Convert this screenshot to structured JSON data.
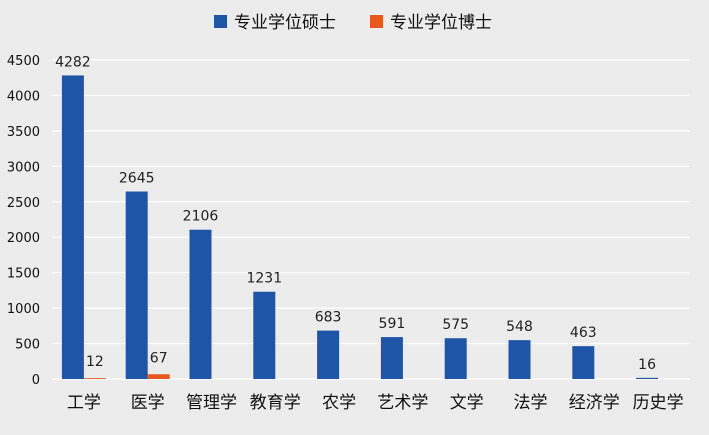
{
  "chart_data": {
    "type": "bar",
    "categories": [
      "工学",
      "医学",
      "管理学",
      "教育学",
      "农学",
      "艺术学",
      "文学",
      "法学",
      "经济学",
      "历史学"
    ],
    "series": [
      {
        "name": "专业学位硕士",
        "color": "#1f55a6",
        "values": [
          4282,
          2645,
          2106,
          1231,
          683,
          591,
          575,
          548,
          463,
          16
        ],
        "data_labels": [
          "4282",
          "2645",
          "2106",
          "1231",
          "683",
          "591",
          "575",
          "548",
          "463",
          "16"
        ]
      },
      {
        "name": "专业学位博士",
        "color": "#e8571b",
        "values": [
          12,
          67,
          0,
          0,
          0,
          0,
          0,
          0,
          0,
          0
        ],
        "data_labels": [
          "12",
          "67",
          "",
          "",
          "",
          "",
          "",
          "",
          "",
          ""
        ]
      }
    ],
    "ylim": [
      0,
      4500
    ],
    "yticks": [
      0,
      500,
      1000,
      1500,
      2000,
      2500,
      3000,
      3500,
      4000,
      4500
    ],
    "ytick_labels": [
      "0",
      "500",
      "1000",
      "1500",
      "2000",
      "2500",
      "3000",
      "3500",
      "4000",
      "4500"
    ],
    "grid": true,
    "legend_position": "top-center"
  }
}
